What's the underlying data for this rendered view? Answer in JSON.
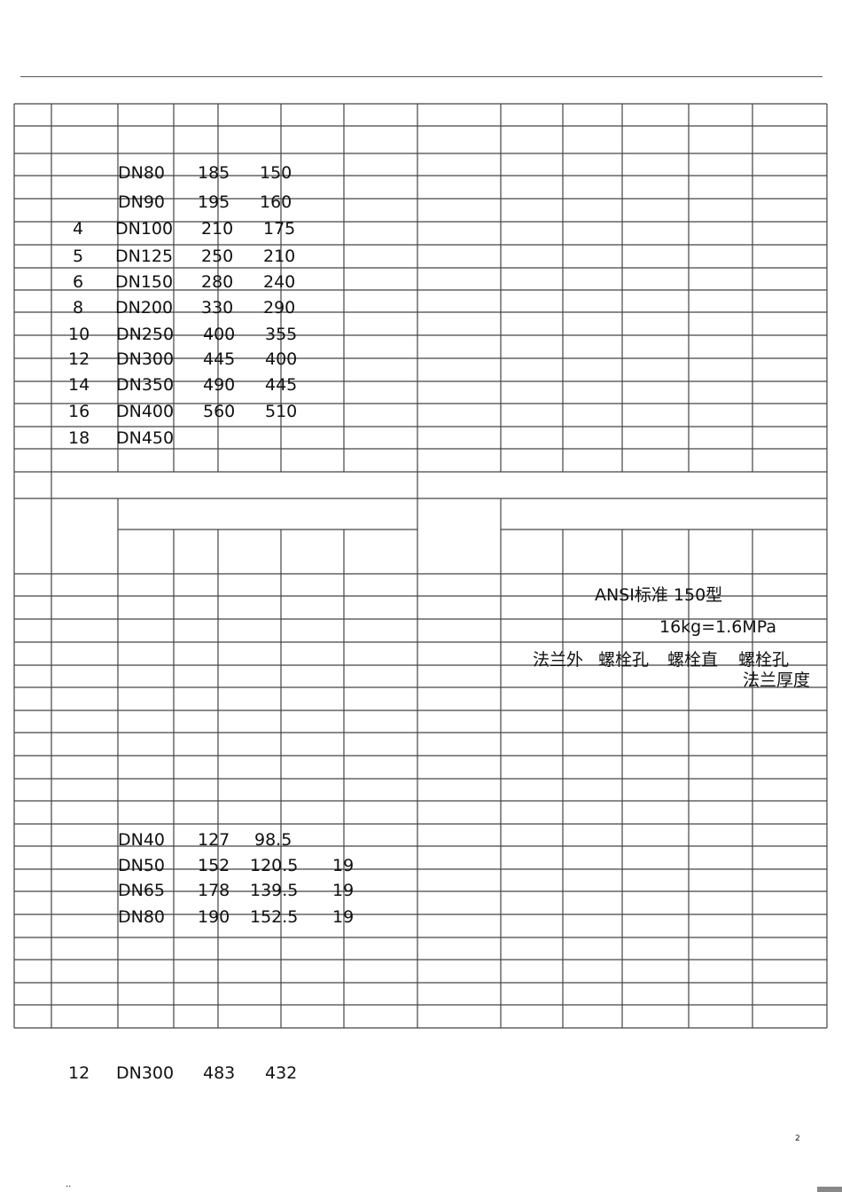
{
  "table1": {
    "rows": [
      {
        "inch": "",
        "dn": "DN80",
        "d": "185",
        "k": "150"
      },
      {
        "inch": "",
        "dn": "DN90",
        "d": "195",
        "k": "160"
      },
      {
        "inch": "4",
        "dn": "DN100",
        "d": "210",
        "k": "175"
      },
      {
        "inch": "5",
        "dn": "DN125",
        "d": "250",
        "k": "210"
      },
      {
        "inch": "6",
        "dn": "DN150",
        "d": "280",
        "k": "240"
      },
      {
        "inch": "8",
        "dn": "DN200",
        "d": "330",
        "k": "290"
      },
      {
        "inch": "10",
        "dn": "DN250",
        "d": "400",
        "k": "355"
      },
      {
        "inch": "12",
        "dn": "DN300",
        "d": "445",
        "k": "400"
      },
      {
        "inch": "14",
        "dn": "DN350",
        "d": "490",
        "k": "445"
      },
      {
        "inch": "16",
        "dn": "DN400",
        "d": "560",
        "k": "510"
      },
      {
        "inch": "18",
        "dn": "DN450",
        "d": "",
        "k": ""
      }
    ]
  },
  "ansi": {
    "title": "ANSI标准 150型",
    "pressure": "16kg=1.6MPa",
    "headers": [
      "法兰外",
      "螺栓孔",
      "螺栓直",
      "螺栓孔",
      "法兰厚度"
    ]
  },
  "table2": {
    "rows": [
      {
        "dn": "DN40",
        "d": "127",
        "k": "98.5",
        "h": ""
      },
      {
        "dn": "DN50",
        "d": "152",
        "k": "120.5",
        "h": "19"
      },
      {
        "dn": "DN65",
        "d": "178",
        "k": "139.5",
        "h": "19"
      },
      {
        "dn": "DN80",
        "d": "190",
        "k": "152.5",
        "h": "19"
      }
    ]
  },
  "extra_row": {
    "inch": "12",
    "dn": "DN300",
    "d": "483",
    "k": "432"
  },
  "page_number": "2",
  "footer_mark": ".."
}
